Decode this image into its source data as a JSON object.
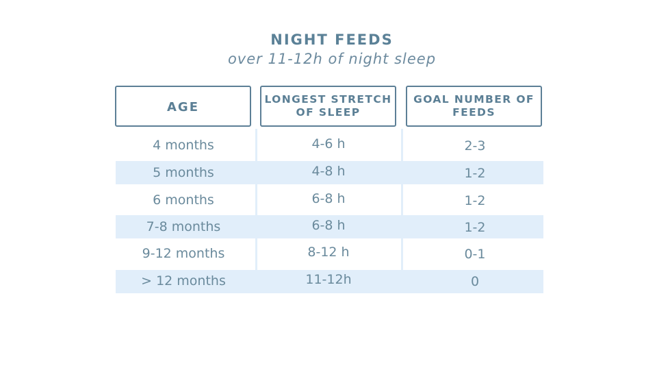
{
  "title": "NIGHT FEEDS",
  "subtitle": "over 11-12h of night sleep",
  "headers": {
    "age": "AGE",
    "stretch_line1": "LONGEST STRETCH",
    "stretch_line2": "OF SLEEP",
    "goal_line1": "GOAL NUMBER OF",
    "goal_line2": "FEEDS"
  },
  "rows": [
    {
      "age": "4 months",
      "stretch": "4-6 h",
      "feeds": "2-3",
      "shaded": false
    },
    {
      "age": "5 months",
      "stretch": "4-8 h",
      "feeds": "1-2",
      "shaded": true
    },
    {
      "age": "6 months",
      "stretch": "6-8 h",
      "feeds": "1-2",
      "shaded": false
    },
    {
      "age": "7-8 months",
      "stretch": "6-8 h",
      "feeds": "1-2",
      "shaded": true
    },
    {
      "age": "9-12 months",
      "stretch": "8-12 h",
      "feeds": "0-1",
      "shaded": false
    },
    {
      "age": "> 12 months",
      "stretch": "11-12h",
      "feeds": "0",
      "shaded": true
    }
  ],
  "colors": {
    "text": "#5c7f96",
    "header_border": "#5c7f96",
    "row_band": "#e1eefa",
    "background": "#ffffff"
  }
}
